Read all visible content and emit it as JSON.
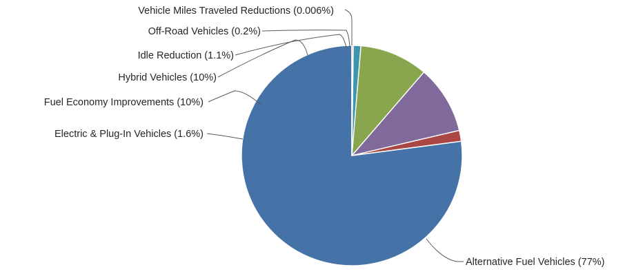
{
  "chart_data": {
    "type": "pie",
    "title": "",
    "slices": [
      {
        "label": "Alternative Fuel Vehicles (77%)",
        "value": 77,
        "color": "#4572a7"
      },
      {
        "label": "Electric & Plug-In Vehicles (1.6%)",
        "value": 1.6,
        "color": "#aa4643"
      },
      {
        "label": "Fuel Economy Improvements (10%)",
        "value": 10,
        "color": "#80699b"
      },
      {
        "label": "Hybrid Vehicles (10%)",
        "value": 10,
        "color": "#89a54e"
      },
      {
        "label": "Idle Reduction (1.1%)",
        "value": 1.1,
        "color": "#3d96ae"
      },
      {
        "label": "Off-Road Vehicles (0.2%)",
        "value": 0.2,
        "color": "#db843d"
      },
      {
        "label": "Vehicle Miles Traveled Reductions (0.006%)",
        "value": 0.006,
        "color": "#92a8cd"
      }
    ],
    "legend": "none"
  }
}
